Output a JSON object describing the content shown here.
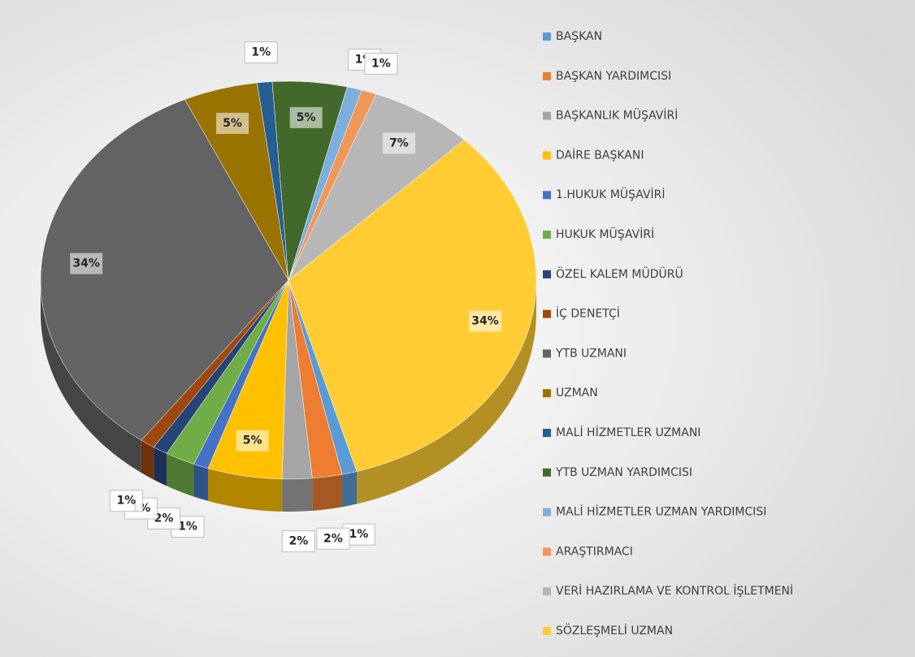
{
  "chart_data": {
    "type": "pie",
    "categories": [
      "BAŞKAN",
      "BAŞKAN YARDIMCISI",
      "BAŞKANLIK MÜŞAVİRİ",
      "DAİRE BAŞKANI",
      "1.HUKUK MÜŞAVİRİ",
      "HUKUK MÜŞAVİRİ",
      "ÖZEL KALEM MÜDÜRÜ",
      "İÇ DENETÇİ",
      "YTB UZMANI",
      "UZMAN",
      "MALİ HİZMETLER UZMANI",
      "YTB UZMAN YARDIMCISI",
      "MALİ HİZMETLER UZMAN YARDIMCISI",
      "ARAŞTIRMACI",
      "VERİ HAZIRLAMA VE KONTROL İŞLETMENİ",
      "SÖZLEŞMELİ UZMAN"
    ],
    "values": [
      1,
      2,
      2,
      5,
      1,
      2,
      1,
      1,
      34,
      5,
      1,
      5,
      1,
      1,
      7,
      34
    ],
    "value_labels": [
      "1%",
      "2%",
      "2%",
      "5%",
      "1%",
      "2%",
      "1%",
      "1%",
      "34%",
      "5%",
      "1%",
      "5%",
      "1%",
      "1%",
      "7%",
      "34%"
    ],
    "colors": [
      "#5b9bd5",
      "#ed7d31",
      "#a5a5a5",
      "#ffc000",
      "#4472c4",
      "#70ad47",
      "#264478",
      "#9e480e",
      "#636363",
      "#997300",
      "#255e91",
      "#43682b",
      "#7cafdd",
      "#f1975a",
      "#b7b7b7",
      "#ffcd33"
    ],
    "legend": "right"
  }
}
